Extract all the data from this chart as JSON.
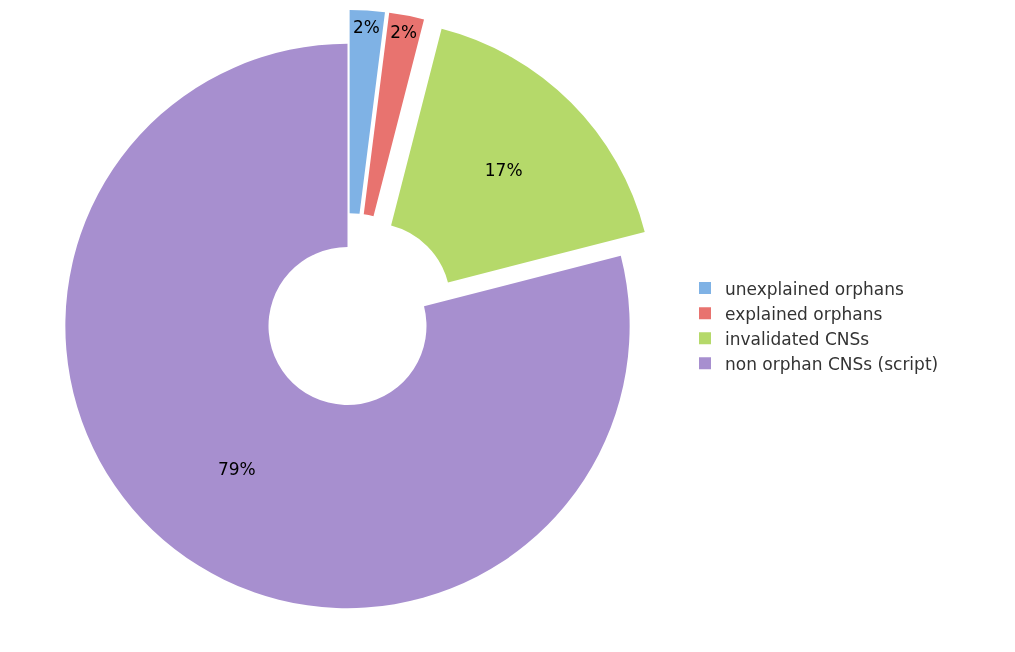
{
  "chart_data": {
    "type": "donut",
    "categories": [
      "unexplained orphans",
      "explained orphans",
      "invalidated CNSs",
      "non orphan CNSs (script)"
    ],
    "values": [
      2,
      2,
      17,
      79
    ],
    "value_labels": [
      "2%",
      "2%",
      "17%",
      "79%"
    ],
    "colors": [
      "#7fb2e5",
      "#e8736f",
      "#b5d96a",
      "#a78fcf"
    ],
    "legend": "right"
  }
}
